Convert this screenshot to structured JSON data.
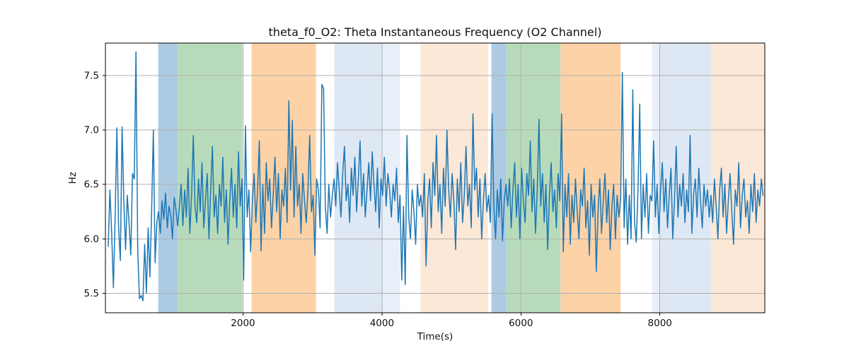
{
  "chart_data": {
    "type": "line",
    "title": "theta_f0_O2: Theta Instantaneous Frequency (O2 Channel)",
    "xlabel": "Time(s)",
    "ylabel": "Hz",
    "xlim": [
      20,
      9510
    ],
    "ylim": [
      5.32,
      7.8
    ],
    "xticks": [
      2000,
      4000,
      6000,
      8000
    ],
    "xtick_labels": [
      "2000",
      "4000",
      "6000",
      "8000"
    ],
    "yticks": [
      5.5,
      6.0,
      6.5,
      7.0,
      7.5
    ],
    "ytick_labels": [
      "5.5",
      "6.0",
      "6.5",
      "7.0",
      "7.5"
    ],
    "grid": true,
    "legend": "none",
    "colors": {
      "line": "#1f77b4",
      "grid": "#b0b0b0",
      "spine": "#000000",
      "band_blue": "#accbe3",
      "band_green": "#b7dbba",
      "band_orange": "#fcd2a6",
      "band_lavender": "#dee8f4",
      "band_lavender_light": "#e9eff8",
      "band_pale_orange": "#fce8d7"
    },
    "background_bands": [
      {
        "t_start": 780,
        "t_end": 1060,
        "color": "#accbe3"
      },
      {
        "t_start": 1060,
        "t_end": 1990,
        "color": "#b7dbba"
      },
      {
        "t_start": 2125,
        "t_end": 3050,
        "color": "#fcd2a6"
      },
      {
        "t_start": 3315,
        "t_end": 4005,
        "color": "#dee8f4"
      },
      {
        "t_start": 4005,
        "t_end": 4260,
        "color": "#e9eff8"
      },
      {
        "t_start": 4555,
        "t_end": 5525,
        "color": "#fce8d7"
      },
      {
        "t_start": 5575,
        "t_end": 5790,
        "color": "#accbe3"
      },
      {
        "t_start": 5790,
        "t_end": 6570,
        "color": "#b7dbba"
      },
      {
        "t_start": 6570,
        "t_end": 7435,
        "color": "#fcd2a6"
      },
      {
        "t_start": 7885,
        "t_end": 8000,
        "color": "#e9eff8"
      },
      {
        "t_start": 8000,
        "t_end": 8735,
        "color": "#dee8f4"
      },
      {
        "t_start": 8735,
        "t_end": 9510,
        "color": "#fce8d7"
      }
    ],
    "series": [
      {
        "name": "theta_f0_O2",
        "line_width": 1.5,
        "t_start": 60,
        "t_step": 25,
        "values": [
          5.93,
          6.45,
          6.05,
          5.55,
          6.2,
          7.02,
          6.1,
          5.8,
          7.03,
          6.35,
          5.9,
          6.4,
          6.15,
          5.85,
          6.6,
          6.55,
          7.72,
          5.9,
          5.45,
          5.48,
          5.43,
          5.95,
          5.5,
          6.1,
          5.65,
          6.25,
          7.0,
          5.78,
          6.15,
          6.25,
          6.05,
          6.35,
          6.18,
          6.42,
          6.1,
          6.3,
          6.22,
          6.0,
          6.38,
          6.27,
          6.12,
          6.3,
          6.5,
          6.12,
          6.45,
          6.2,
          6.65,
          6.05,
          6.4,
          6.95,
          6.3,
          6.15,
          6.55,
          6.25,
          6.7,
          6.1,
          6.35,
          6.6,
          6.0,
          6.45,
          6.85,
          6.2,
          6.4,
          6.05,
          6.5,
          6.3,
          6.75,
          6.15,
          6.45,
          5.95,
          6.35,
          6.65,
          6.2,
          6.5,
          6.1,
          6.8,
          6.3,
          6.55,
          5.62,
          7.04,
          6.2,
          6.45,
          5.88,
          6.35,
          6.6,
          6.15,
          6.45,
          6.9,
          5.89,
          6.5,
          6.05,
          6.7,
          6.35,
          6.55,
          6.1,
          6.4,
          6.75,
          6.25,
          6.6,
          6.0,
          6.45,
          6.3,
          6.65,
          6.15,
          7.27,
          6.45,
          7.09,
          6.2,
          6.85,
          6.3,
          6.5,
          6.05,
          6.6,
          6.35,
          6.15,
          6.45,
          6.95,
          6.25,
          6.4,
          5.85,
          6.55,
          6.45,
          6.1,
          7.42,
          7.38,
          6.3,
          6.05,
          6.5,
          6.2,
          6.4,
          6.55,
          6.3,
          6.7,
          6.45,
          6.2,
          6.6,
          6.85,
          6.35,
          6.5,
          6.15,
          6.65,
          6.4,
          6.75,
          6.25,
          6.55,
          6.9,
          6.3,
          6.6,
          6.2,
          6.45,
          6.7,
          6.35,
          6.8,
          6.5,
          6.25,
          6.65,
          6.1,
          6.55,
          6.4,
          6.75,
          6.3,
          6.6,
          6.45,
          6.2,
          6.5,
          6.35,
          6.65,
          6.15,
          6.4,
          5.62,
          6.3,
          5.58,
          6.95,
          6.2,
          6.0,
          6.45,
          6.25,
          5.95,
          6.5,
          6.3,
          6.4,
          6.2,
          6.6,
          5.75,
          6.35,
          6.55,
          6.1,
          6.7,
          6.4,
          6.95,
          6.25,
          6.5,
          6.05,
          6.65,
          6.3,
          7.0,
          6.45,
          6.2,
          6.6,
          6.35,
          5.9,
          6.55,
          6.25,
          6.7,
          6.15,
          6.4,
          6.85,
          6.3,
          6.5,
          6.1,
          7.15,
          6.45,
          6.65,
          6.2,
          6.55,
          6.0,
          6.35,
          6.6,
          6.25,
          6.4,
          6.15,
          7.15,
          6.3,
          6.0,
          6.45,
          6.2,
          6.55,
          5.98,
          6.35,
          6.5,
          6.3,
          6.55,
          6.1,
          6.45,
          6.7,
          6.2,
          6.5,
          6.0,
          6.65,
          6.35,
          6.15,
          6.6,
          6.4,
          6.9,
          6.25,
          6.55,
          6.05,
          6.45,
          7.1,
          6.3,
          6.6,
          6.15,
          6.5,
          5.9,
          6.4,
          6.7,
          6.25,
          6.45,
          6.1,
          6.6,
          6.35,
          7.15,
          5.88,
          6.5,
          6.2,
          6.6,
          5.95,
          6.4,
          6.15,
          6.55,
          6.25,
          6.0,
          6.45,
          6.3,
          6.65,
          6.1,
          6.35,
          5.85,
          6.5,
          6.2,
          6.4,
          5.7,
          6.25,
          6.55,
          6.05,
          6.35,
          6.6,
          6.15,
          6.45,
          5.9,
          6.3,
          6.5,
          6.0,
          6.4,
          6.2,
          6.35,
          7.53,
          6.1,
          6.55,
          5.95,
          6.4,
          6.0,
          7.37,
          6.15,
          5.97,
          6.45,
          7.24,
          6.0,
          6.5,
          6.2,
          6.6,
          6.05,
          6.4,
          6.35,
          6.9,
          6.2,
          6.5,
          6.05,
          6.45,
          6.7,
          6.25,
          6.55,
          6.1,
          6.4,
          6.65,
          6.0,
          6.35,
          6.85,
          6.2,
          6.5,
          6.3,
          6.6,
          6.15,
          6.45,
          6.25,
          6.95,
          6.05,
          6.4,
          6.55,
          6.2,
          6.65,
          6.35,
          6.1,
          6.5,
          6.3,
          6.45,
          6.2,
          6.4,
          6.15,
          6.55,
          6.3,
          6.0,
          6.45,
          6.65,
          6.2,
          6.5,
          6.05,
          6.35,
          6.6,
          6.25,
          5.95,
          6.45,
          6.3,
          6.7,
          6.1,
          6.4,
          6.55,
          6.2,
          6.35,
          6.05,
          6.5,
          6.25,
          6.6,
          6.15,
          6.45,
          6.3,
          6.55,
          6.4
        ]
      }
    ]
  }
}
